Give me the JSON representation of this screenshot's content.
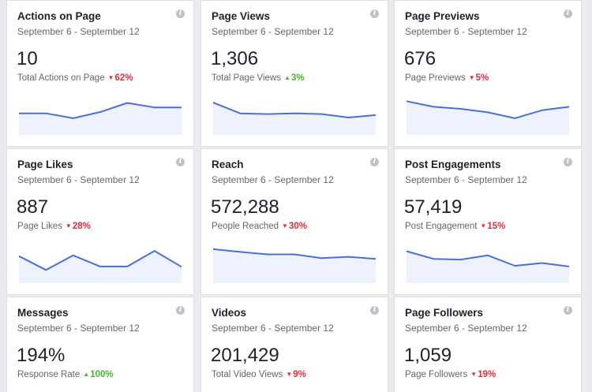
{
  "cards": [
    {
      "title": "Actions on Page",
      "date": "September 6 - September 12",
      "value": "10",
      "label": "Total Actions on Page",
      "change": "62%",
      "direction": "down",
      "trend": [
        0.62,
        0.62,
        0.48,
        0.66,
        0.92,
        0.79,
        0.79
      ]
    },
    {
      "title": "Page Views",
      "date": "September 6 - September 12",
      "value": "1,306",
      "label": "Total Page Views",
      "change": "3%",
      "direction": "up",
      "trend": [
        0.93,
        0.62,
        0.6,
        0.62,
        0.6,
        0.5,
        0.57
      ]
    },
    {
      "title": "Page Previews",
      "date": "September 6 - September 12",
      "value": "676",
      "label": "Page Previews",
      "change": "5%",
      "direction": "down",
      "trend": [
        0.97,
        0.81,
        0.75,
        0.65,
        0.48,
        0.71,
        0.81
      ]
    },
    {
      "title": "Page Likes",
      "date": "September 6 - September 12",
      "value": "887",
      "label": "Page Likes",
      "change": "28%",
      "direction": "down",
      "trend": [
        0.78,
        0.38,
        0.8,
        0.48,
        0.48,
        0.93,
        0.47
      ]
    },
    {
      "title": "Reach",
      "date": "September 6 - September 12",
      "value": "572,288",
      "label": "People Reached",
      "change": "30%",
      "direction": "down",
      "trend": [
        0.98,
        0.9,
        0.83,
        0.83,
        0.72,
        0.76,
        0.7
      ]
    },
    {
      "title": "Post Engagements",
      "date": "September 6 - September 12",
      "value": "57,419",
      "label": "Post Engagement",
      "change": "15%",
      "direction": "down",
      "trend": [
        0.92,
        0.7,
        0.68,
        0.8,
        0.5,
        0.58,
        0.48
      ]
    },
    {
      "title": "Messages",
      "date": "September 6 - September 12",
      "value": "194%",
      "label": "Response Rate",
      "change": "100%",
      "direction": "up",
      "trend": []
    },
    {
      "title": "Videos",
      "date": "September 6 - September 12",
      "value": "201,429",
      "label": "Total Video Views",
      "change": "9%",
      "direction": "down",
      "trend": []
    },
    {
      "title": "Page Followers",
      "date": "September 6 - September 12",
      "value": "1,059",
      "label": "Page Followers",
      "change": "19%",
      "direction": "down",
      "trend": []
    }
  ],
  "icons": {
    "info": "info-icon",
    "up": "triangle-up-icon",
    "down": "triangle-down-icon"
  },
  "colors": {
    "line": "#4a6fdc",
    "fill": "#edf2fc",
    "down": "#e02c3b",
    "up": "#42b72a"
  }
}
